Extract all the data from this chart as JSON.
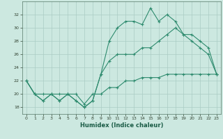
{
  "xlabel": "Humidex (Indice chaleur)",
  "x": [
    0,
    1,
    2,
    3,
    4,
    5,
    6,
    7,
    8,
    9,
    10,
    11,
    12,
    13,
    14,
    15,
    16,
    17,
    18,
    19,
    20,
    21,
    22,
    23
  ],
  "line1": [
    22,
    20,
    19,
    20,
    19,
    20,
    19,
    18,
    19,
    23,
    28,
    30,
    31,
    31,
    30.5,
    33,
    31,
    32,
    31,
    29,
    28,
    27,
    26,
    23
  ],
  "line2": [
    22,
    20,
    19,
    20,
    19,
    20,
    19,
    18,
    19,
    23,
    25,
    26,
    26,
    26,
    27,
    27,
    28,
    29,
    30,
    29,
    29,
    28,
    27,
    23
  ],
  "line3": [
    22,
    20,
    20,
    20,
    20,
    20,
    20,
    18.5,
    20,
    20,
    21,
    21,
    22,
    22,
    22.5,
    22.5,
    22.5,
    23,
    23,
    23,
    23,
    23,
    23,
    23
  ],
  "color": "#2e8b6e",
  "bg_color": "#cce8e0",
  "grid_color": "#aaccc4",
  "ylim": [
    17,
    34
  ],
  "yticks": [
    18,
    20,
    22,
    24,
    26,
    28,
    30,
    32
  ],
  "xticks": [
    0,
    1,
    2,
    3,
    4,
    5,
    6,
    7,
    8,
    9,
    10,
    11,
    12,
    13,
    14,
    15,
    16,
    17,
    18,
    19,
    20,
    21,
    22,
    23
  ],
  "marker": "+",
  "markersize": 3,
  "linewidth": 0.8,
  "xlabel_fontsize": 6,
  "tick_fontsize": 4.5
}
